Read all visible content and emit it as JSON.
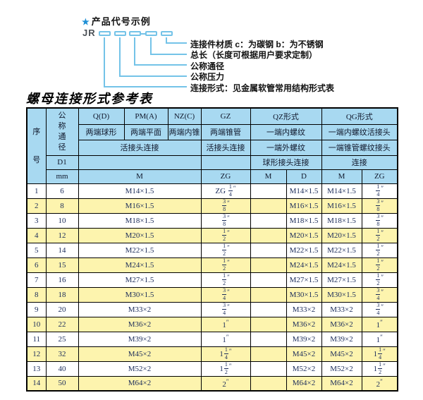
{
  "colors": {
    "header_blue": "#a8d9f1",
    "row_yellow": "#fdf4ae",
    "line_blue": "#74c3e8",
    "star_blue": "#1e8fd5",
    "data_navy": "#1b2c5a"
  },
  "diagram": {
    "star": "★",
    "title": "产品代号示例",
    "prefix": "JR",
    "labels": [
      "连接件材质  c：为碳钢  b：为不锈钢",
      "总长（长度可根据用户要求定制）",
      "公称通径",
      "公称压力",
      "连接形式：见金属软管常用结构形式表"
    ]
  },
  "table": {
    "title": "螺母连接形式参考表",
    "header": {
      "seq": "序号",
      "dn": "公称通径",
      "d1": "D1",
      "mm": "mm",
      "forms": [
        "Q(D)",
        "PM(A)",
        "NZ(C)",
        "GZ",
        "QZ形式",
        "QG形式"
      ],
      "ends": [
        "两端球形",
        "两端平面",
        "两端内锥",
        "两端锥管",
        "一端内螺纹",
        "一端内螺纹活接头"
      ],
      "joints": [
        "活接头连接",
        "活接头连接",
        "一端外螺纹",
        "一端锥管螺纹接头"
      ],
      "connects": [
        "球形接头连接",
        "连接"
      ],
      "units": [
        "M",
        "ZG",
        "M",
        "D",
        "M",
        "ZG"
      ]
    },
    "rows": [
      {
        "seq": "1",
        "dn": "6",
        "m": "M14×1.5",
        "gz": {
          "pre": "ZG ",
          "n": "1",
          "d": "4"
        },
        "qz_m": "",
        "qz_d": "M14×1.5",
        "qg_m": "M14×1.5",
        "qg_zg": {
          "n": "1",
          "d": "4"
        }
      },
      {
        "seq": "2",
        "dn": "8",
        "m": "M16×1.5",
        "gz": {
          "n": "3",
          "d": "8"
        },
        "qz_m": "",
        "qz_d": "M16×1.5",
        "qg_m": "M16×1.5",
        "qg_zg": {
          "n": "3",
          "d": "8"
        }
      },
      {
        "seq": "3",
        "dn": "10",
        "m": "M18×1.5",
        "gz": {
          "n": "3",
          "d": "8"
        },
        "qz_m": "",
        "qz_d": "M18×1.5",
        "qg_m": "M18×1.5",
        "qg_zg": {
          "n": "3",
          "d": "8"
        }
      },
      {
        "seq": "4",
        "dn": "12",
        "m": "M20×1.5",
        "gz": {
          "n": "1",
          "d": "2"
        },
        "qz_m": "",
        "qz_d": "M20×1.5",
        "qg_m": "M20×1.5",
        "qg_zg": {
          "n": "1",
          "d": "2"
        }
      },
      {
        "seq": "5",
        "dn": "14",
        "m": "M22×1.5",
        "gz": {
          "n": "1",
          "d": "2"
        },
        "qz_m": "",
        "qz_d": "M22×1.5",
        "qg_m": "M22×1.5",
        "qg_zg": {
          "n": "1",
          "d": "2"
        }
      },
      {
        "seq": "6",
        "dn": "15",
        "m": "M24×1.5",
        "gz": {
          "n": "1",
          "d": "2"
        },
        "qz_m": "",
        "qz_d": "M24×1.5",
        "qg_m": "M24×1.5",
        "qg_zg": {
          "n": "1",
          "d": "2"
        }
      },
      {
        "seq": "7",
        "dn": "16",
        "m": "M27×1.5",
        "gz": {
          "n": "1",
          "d": "2"
        },
        "qz_m": "",
        "qz_d": "M27×1.5",
        "qg_m": "M27×1.5",
        "qg_zg": {
          "n": "1",
          "d": "2"
        }
      },
      {
        "seq": "8",
        "dn": "18",
        "m": "M30×1.5",
        "gz": {
          "n": "3",
          "d": "4"
        },
        "qz_m": "",
        "qz_d": "M30×1.5",
        "qg_m": "M30×1.5",
        "qg_zg": {
          "n": "3",
          "d": "4"
        }
      },
      {
        "seq": "9",
        "dn": "20",
        "m": "M33×2",
        "gz": {
          "n": "3",
          "d": "4"
        },
        "qz_m": "",
        "qz_d": "M33×2",
        "qg_m": "M33×2",
        "qg_zg": {
          "n": "3",
          "d": "4"
        }
      },
      {
        "seq": "10",
        "dn": "22",
        "m": "M36×2",
        "gz": {
          "whole": "1"
        },
        "qz_m": "",
        "qz_d": "M36×2",
        "qg_m": "M36×2",
        "qg_zg": {
          "whole": "1"
        }
      },
      {
        "seq": "11",
        "dn": "25",
        "m": "M39×2",
        "gz": {
          "whole": "1"
        },
        "qz_m": "",
        "qz_d": "M39×2",
        "qg_m": "M39×2",
        "qg_zg": {
          "whole": "1"
        }
      },
      {
        "seq": "12",
        "dn": "32",
        "m": "M45×2",
        "gz": {
          "whole": "1",
          "n": "1",
          "d": "4"
        },
        "qz_m": "",
        "qz_d": "M45×2",
        "qg_m": "M45×2",
        "qg_zg": {
          "whole": "1",
          "n": "1",
          "d": "4"
        }
      },
      {
        "seq": "13",
        "dn": "40",
        "m": "M52×2",
        "gz": {
          "whole": "1",
          "n": "1",
          "d": "2"
        },
        "qz_m": "",
        "qz_d": "M52×2",
        "qg_m": "M52×2",
        "qg_zg": {
          "whole": "1",
          "n": "1",
          "d": "2"
        }
      },
      {
        "seq": "14",
        "dn": "50",
        "m": "M64×2",
        "gz": {
          "whole": "2"
        },
        "qz_m": "",
        "qz_d": "M64×2",
        "qg_m": "M64×2",
        "qg_zg": {
          "whole": "2"
        }
      }
    ]
  }
}
